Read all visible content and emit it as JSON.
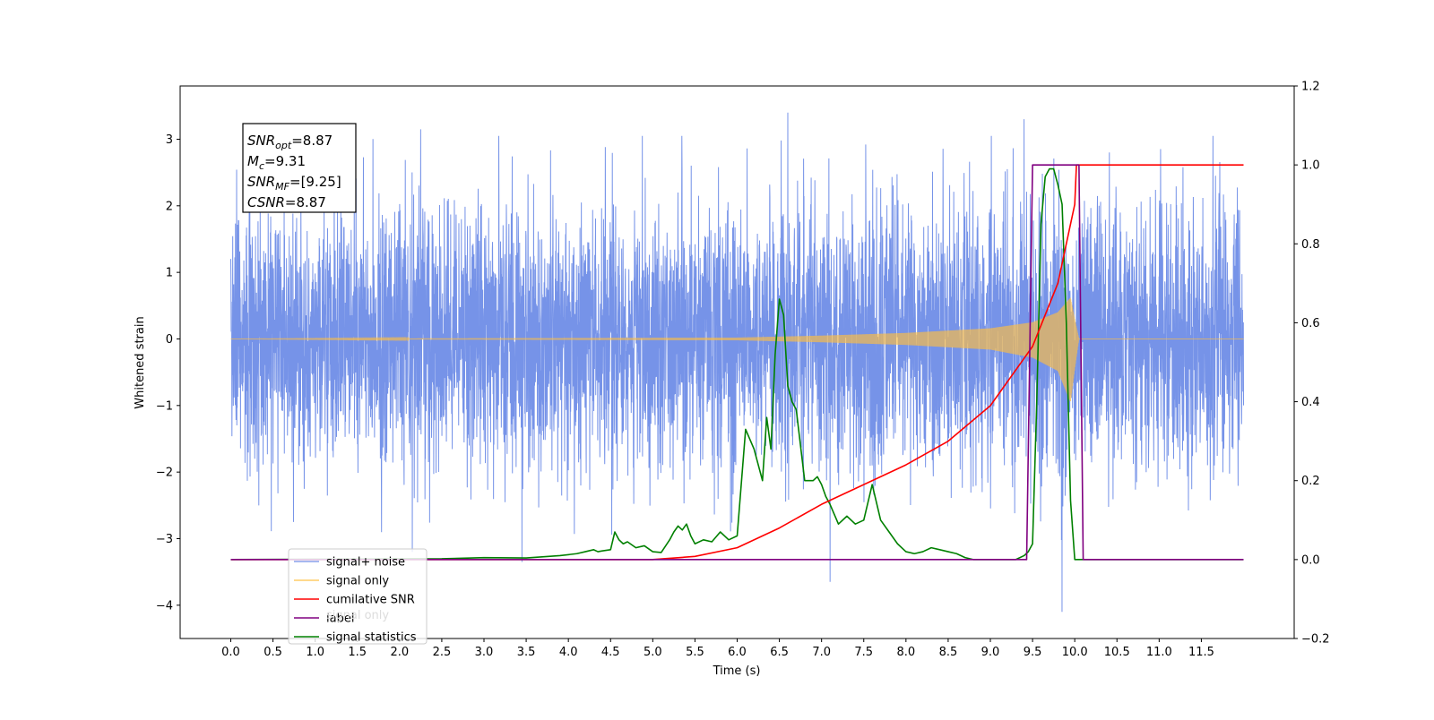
{
  "chart_data": {
    "type": "line",
    "xlabel": "Time (s)",
    "ylabel": "Whitened strain",
    "x_ticks": [
      "0.0",
      "0.5",
      "1.0",
      "1.5",
      "2.0",
      "2.5",
      "3.0",
      "3.5",
      "4.0",
      "4.5",
      "5.0",
      "5.5",
      "6.0",
      "6.5",
      "7.0",
      "7.5",
      "8.0",
      "8.5",
      "9.0",
      "9.5",
      "10.0",
      "10.5",
      "11.0",
      "11.5"
    ],
    "xlim": [
      -0.6,
      12.6
    ],
    "ylim_left": [
      -4.5,
      3.8
    ],
    "ylim_right": [
      -0.2,
      1.2
    ],
    "y_ticks_left": [
      "3",
      "2",
      "1",
      "0",
      "−1",
      "−2",
      "−3",
      "−4"
    ],
    "y_ticks_right": [
      "1.2",
      "1.0",
      "0.8",
      "0.6",
      "0.4",
      "0.2",
      "0.0",
      "−0.2"
    ],
    "grid": false,
    "legend_position": "bottom-left",
    "legend": [
      {
        "label": "signal+ noise",
        "color": "#6a8ae6"
      },
      {
        "label": "signal only",
        "color": "#ffbf40"
      },
      {
        "label": "cumilative SNR",
        "color": "#ff0000"
      },
      {
        "label": "label",
        "color": "#800080"
      },
      {
        "label": "signal statistics",
        "color": "#008000"
      }
    ],
    "hidden_legend_text": "signal only",
    "annotation": {
      "lines": [
        {
          "base": "SNR",
          "sub": "opt",
          "rest": "=8.87"
        },
        {
          "base": "M",
          "sub": "c",
          "rest": "=9.31"
        },
        {
          "base": "SNR",
          "sub": "MF",
          "rest": "=[9.25]"
        },
        {
          "base": "CSNR",
          "sub": "",
          "rest": "=8.87"
        }
      ]
    },
    "series": [
      {
        "name": "signal+ noise",
        "axis": "left",
        "color": "#6a8ae6",
        "x_range": [
          0.0,
          12.0
        ],
        "typical_amplitude_range": [
          -2.2,
          2.4
        ],
        "extreme_values": [
          [
            6.6,
            3.4
          ],
          [
            9.4,
            3.3
          ],
          [
            7.1,
            -3.65
          ],
          [
            9.85,
            -4.1
          ],
          [
            3.45,
            -3.35
          ],
          [
            2.15,
            -3.2
          ],
          [
            2.25,
            3.15
          ]
        ]
      },
      {
        "name": "signal only",
        "axis": "left",
        "color": "#ffbf40",
        "x_range": [
          0.0,
          12.0
        ],
        "envelope": {
          "x": [
            0.0,
            6.0,
            7.0,
            8.0,
            9.0,
            9.5,
            9.8,
            9.95,
            10.0,
            10.05,
            12.0
          ],
          "upper": [
            0.0,
            0.02,
            0.05,
            0.09,
            0.16,
            0.25,
            0.4,
            0.62,
            0.3,
            0.0,
            0.0
          ],
          "lower": [
            0.0,
            -0.02,
            -0.05,
            -0.09,
            -0.16,
            -0.28,
            -0.48,
            -0.95,
            -0.45,
            0.0,
            0.0
          ]
        }
      },
      {
        "name": "cumilative SNR",
        "axis": "right",
        "color": "#ff0000",
        "x": [
          0.0,
          5.0,
          5.5,
          6.0,
          6.5,
          7.0,
          7.5,
          8.0,
          8.5,
          9.0,
          9.5,
          9.8,
          10.0,
          10.02,
          12.0
        ],
        "y": [
          0.0,
          0.0,
          0.008,
          0.03,
          0.08,
          0.14,
          0.19,
          0.24,
          0.3,
          0.39,
          0.54,
          0.7,
          0.9,
          1.0,
          1.0
        ]
      },
      {
        "name": "label",
        "axis": "right",
        "color": "#800080",
        "x": [
          0.0,
          9.43,
          9.5,
          10.05,
          10.1,
          12.0
        ],
        "y": [
          0.0,
          0.0,
          1.0,
          1.0,
          0.0,
          0.0
        ]
      },
      {
        "name": "signal statistics",
        "axis": "right",
        "color": "#008000",
        "x": [
          0.0,
          2.5,
          3.0,
          3.5,
          3.9,
          4.1,
          4.2,
          4.3,
          4.35,
          4.4,
          4.5,
          4.55,
          4.6,
          4.65,
          4.7,
          4.8,
          4.9,
          5.0,
          5.1,
          5.2,
          5.25,
          5.3,
          5.35,
          5.4,
          5.45,
          5.5,
          5.6,
          5.7,
          5.8,
          5.9,
          6.0,
          6.1,
          6.2,
          6.3,
          6.35,
          6.4,
          6.45,
          6.5,
          6.55,
          6.6,
          6.65,
          6.7,
          6.8,
          6.9,
          6.95,
          7.0,
          7.05,
          7.1,
          7.2,
          7.3,
          7.4,
          7.5,
          7.6,
          7.7,
          7.8,
          7.9,
          8.0,
          8.1,
          8.2,
          8.3,
          8.4,
          8.5,
          8.6,
          8.7,
          8.8,
          9.0,
          9.3,
          9.4,
          9.45,
          9.5,
          9.55,
          9.6,
          9.65,
          9.7,
          9.75,
          9.8,
          9.85,
          9.9,
          9.95,
          10.0,
          10.05,
          10.1,
          10.2,
          12.0
        ],
        "y": [
          0.0,
          0.002,
          0.005,
          0.004,
          0.01,
          0.015,
          0.02,
          0.025,
          0.02,
          0.022,
          0.025,
          0.07,
          0.05,
          0.04,
          0.045,
          0.03,
          0.035,
          0.02,
          0.018,
          0.05,
          0.07,
          0.085,
          0.075,
          0.09,
          0.06,
          0.04,
          0.05,
          0.045,
          0.07,
          0.05,
          0.06,
          0.33,
          0.28,
          0.2,
          0.36,
          0.28,
          0.52,
          0.66,
          0.62,
          0.44,
          0.4,
          0.38,
          0.2,
          0.2,
          0.21,
          0.19,
          0.16,
          0.14,
          0.09,
          0.11,
          0.09,
          0.1,
          0.19,
          0.1,
          0.07,
          0.04,
          0.02,
          0.015,
          0.02,
          0.03,
          0.025,
          0.02,
          0.015,
          0.005,
          0.0,
          0.0,
          0.0,
          0.01,
          0.02,
          0.04,
          0.4,
          0.85,
          0.97,
          0.99,
          0.99,
          0.95,
          0.9,
          0.6,
          0.15,
          0.0,
          0.0,
          0.0,
          0.0,
          0.0
        ]
      }
    ]
  }
}
